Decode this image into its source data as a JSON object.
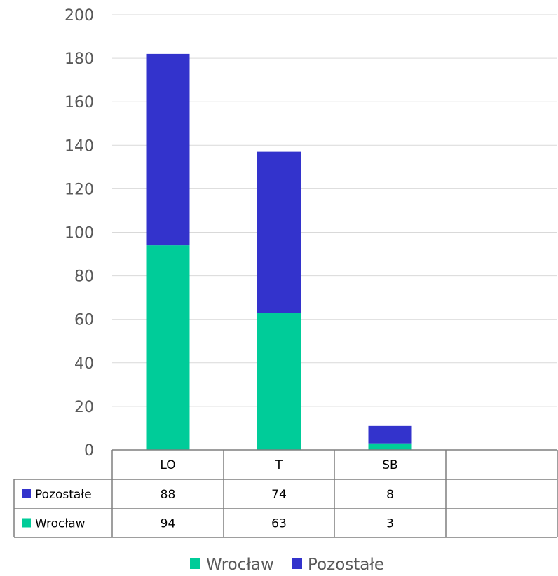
{
  "chart_data": {
    "type": "bar",
    "stacked": true,
    "categories": [
      "LO",
      "T",
      "SB"
    ],
    "series": [
      {
        "name": "Wrocław",
        "values": [
          94,
          63,
          3
        ],
        "color": "#00CC99"
      },
      {
        "name": "Pozostałe",
        "values": [
          88,
          74,
          8
        ],
        "color": "#3333CC"
      }
    ],
    "ylim": [
      0,
      200
    ],
    "yticks": [
      0,
      20,
      40,
      60,
      80,
      100,
      120,
      140,
      160,
      180,
      200
    ],
    "grid": true,
    "data_table": {
      "rows": [
        {
          "label": "Pozostałe",
          "values": [
            "88",
            "74",
            "8"
          ],
          "color": "#3333CC"
        },
        {
          "label": "Wrocław",
          "values": [
            "94",
            "63",
            "3"
          ],
          "color": "#00CC99"
        }
      ]
    },
    "legend": {
      "position": "bottom",
      "items": [
        {
          "label": "Wrocław",
          "color": "#00CC99"
        },
        {
          "label": "Pozostałe",
          "color": "#3333CC"
        }
      ]
    }
  }
}
